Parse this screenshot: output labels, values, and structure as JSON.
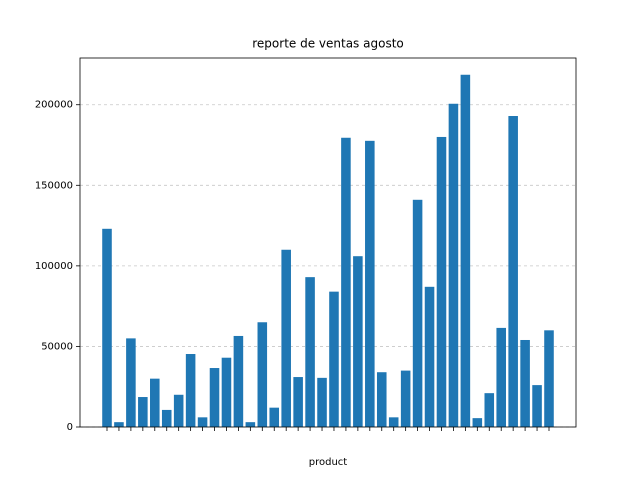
{
  "chart_data": {
    "type": "bar",
    "title": "reporte de ventas agosto",
    "xlabel": "product",
    "categories": [
      null,
      null,
      null,
      null,
      null,
      null,
      null,
      null,
      null,
      null,
      null,
      null,
      null,
      null,
      null,
      null,
      null,
      null,
      null,
      null,
      null,
      null,
      null,
      null,
      null,
      null,
      null,
      null,
      null,
      null,
      null,
      null,
      null,
      null,
      null,
      null,
      null,
      null
    ],
    "values": [
      123000,
      3000,
      55000,
      18600,
      30000,
      10600,
      20000,
      45300,
      6000,
      36600,
      43000,
      56500,
      3000,
      65000,
      12000,
      110000,
      31000,
      93000,
      30500,
      84000,
      179500,
      106000,
      177600,
      34000,
      6000,
      35000,
      141000,
      87000,
      180000,
      200600,
      218600,
      5500,
      21000,
      61500,
      193000,
      54000,
      26000,
      60000
    ],
    "color": "#1f77b4",
    "ylim": [
      0,
      229000
    ],
    "yticks": [
      0,
      50000,
      100000,
      150000,
      200000
    ],
    "grid": true
  }
}
